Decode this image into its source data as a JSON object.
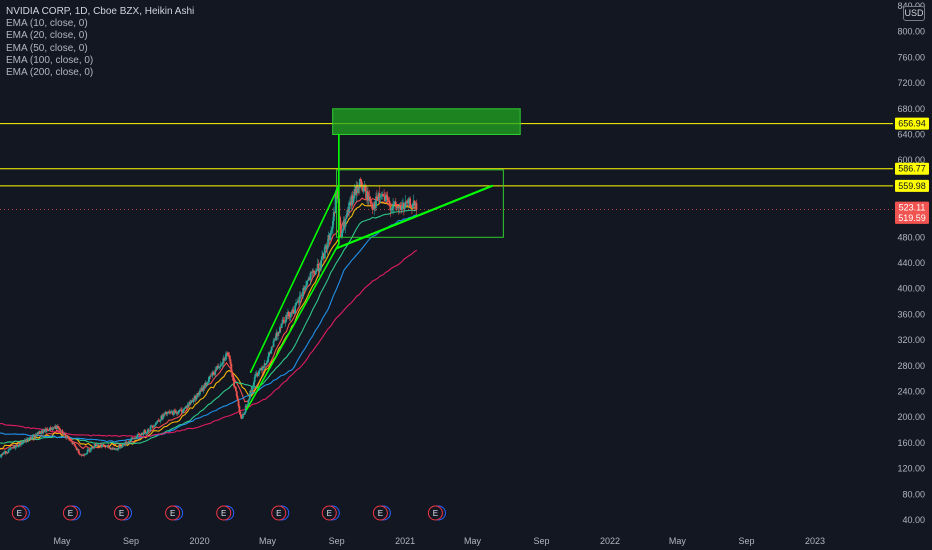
{
  "legend": {
    "title": "NVIDIA CORP, 1D, Cboe BZX, Heikin Ashi",
    "studies": [
      "EMA (10, close, 0)",
      "EMA (20, close, 0)",
      "EMA (50, close, 0)",
      "EMA (100, close, 0)",
      "EMA (200, close, 0)"
    ]
  },
  "currency_button": "USD",
  "earnings_marker": "E",
  "colors": {
    "background": "#131722",
    "axis_text": "#b2b5be",
    "level_line": "#ffff00",
    "trend_line": "#00ff00",
    "zone_fill": "#22a822",
    "current_price": "#f05350",
    "ema_10": "#ff5252",
    "ema_20": "#ffc107",
    "ema_50": "#2fd28e",
    "ema_100": "#2196f3",
    "ema_200": "#e91e63",
    "candle_up": "#26a69a",
    "candle_down": "#ef5350"
  },
  "chart_data": {
    "type": "candlestick",
    "symbol": "NVIDIA CORP",
    "interval": "1D",
    "exchange": "Cboe BZX",
    "style": "Heikin Ashi",
    "y_ticks": [
      "40.00",
      "80.00",
      "120.00",
      "160.00",
      "200.00",
      "240.00",
      "280.00",
      "320.00",
      "360.00",
      "400.00",
      "440.00",
      "480.00",
      "520.00",
      "560.00",
      "600.00",
      "640.00",
      "680.00",
      "720.00",
      "760.00",
      "800.00",
      "840.00"
    ],
    "x_ticks": [
      {
        "label": "May",
        "date": "2019-05-01"
      },
      {
        "label": "Sep",
        "date": "2019-09-01"
      },
      {
        "label": "2020",
        "date": "2020-01-01"
      },
      {
        "label": "May",
        "date": "2020-05-01"
      },
      {
        "label": "Sep",
        "date": "2020-09-01"
      },
      {
        "label": "2021",
        "date": "2021-01-01"
      },
      {
        "label": "May",
        "date": "2021-05-01"
      },
      {
        "label": "Sep",
        "date": "2021-09-01"
      },
      {
        "label": "2022",
        "date": "2022-01-01"
      },
      {
        "label": "May",
        "date": "2022-05-01"
      },
      {
        "label": "Sep",
        "date": "2022-09-01"
      },
      {
        "label": "2023",
        "date": "2023-01-01"
      }
    ],
    "ylim": [
      40,
      840
    ],
    "price_path": [
      [
        "2018-12-20",
        150
      ],
      [
        "2019-01-05",
        138
      ],
      [
        "2019-02-15",
        158
      ],
      [
        "2019-03-20",
        175
      ],
      [
        "2019-04-20",
        185
      ],
      [
        "2019-05-15",
        165
      ],
      [
        "2019-06-05",
        140
      ],
      [
        "2019-07-01",
        158
      ],
      [
        "2019-08-05",
        150
      ],
      [
        "2019-09-01",
        165
      ],
      [
        "2019-10-01",
        180
      ],
      [
        "2019-11-01",
        205
      ],
      [
        "2019-12-01",
        210
      ],
      [
        "2020-01-01",
        238
      ],
      [
        "2020-02-20",
        300
      ],
      [
        "2020-03-16",
        195
      ],
      [
        "2020-04-10",
        265
      ],
      [
        "2020-05-01",
        290
      ],
      [
        "2020-05-27",
        350
      ],
      [
        "2020-06-20",
        370
      ],
      [
        "2020-07-10",
        410
      ],
      [
        "2020-08-05",
        440
      ],
      [
        "2020-08-25",
        500
      ],
      [
        "2020-09-02",
        560
      ],
      [
        "2020-09-08",
        480
      ],
      [
        "2020-09-25",
        530
      ],
      [
        "2020-10-12",
        565
      ],
      [
        "2020-10-25",
        545
      ],
      [
        "2020-11-05",
        530
      ],
      [
        "2020-11-20",
        545
      ],
      [
        "2020-12-05",
        530
      ],
      [
        "2020-12-20",
        525
      ],
      [
        "2021-01-05",
        530
      ],
      [
        "2021-01-12",
        533
      ],
      [
        "2021-01-22",
        523.11
      ]
    ],
    "ema_series": [
      {
        "name": "EMA (10, close, 0)",
        "color": "#ff5252",
        "points": [
          [
            "2019-01-10",
            150
          ],
          [
            "2019-04-20",
            178
          ],
          [
            "2019-06-10",
            152
          ],
          [
            "2019-09-01",
            160
          ],
          [
            "2019-12-01",
            205
          ],
          [
            "2020-02-20",
            285
          ],
          [
            "2020-03-25",
            220
          ],
          [
            "2020-06-01",
            330
          ],
          [
            "2020-08-25",
            480
          ],
          [
            "2020-10-10",
            540
          ],
          [
            "2020-12-01",
            535
          ],
          [
            "2021-01-22",
            527
          ]
        ]
      },
      {
        "name": "EMA (20, close, 0)",
        "color": "#ffc107",
        "points": [
          [
            "2019-01-10",
            152
          ],
          [
            "2019-04-25",
            175
          ],
          [
            "2019-06-20",
            155
          ],
          [
            "2019-09-01",
            158
          ],
          [
            "2019-12-01",
            200
          ],
          [
            "2020-02-25",
            275
          ],
          [
            "2020-03-30",
            230
          ],
          [
            "2020-06-01",
            320
          ],
          [
            "2020-08-25",
            465
          ],
          [
            "2020-10-10",
            530
          ],
          [
            "2020-12-01",
            532
          ],
          [
            "2021-01-22",
            525
          ]
        ]
      },
      {
        "name": "EMA (50, close, 0)",
        "color": "#2fd28e",
        "points": [
          [
            "2019-01-10",
            160
          ],
          [
            "2019-05-01",
            170
          ],
          [
            "2019-07-01",
            160
          ],
          [
            "2019-09-20",
            160
          ],
          [
            "2019-12-15",
            195
          ],
          [
            "2020-03-05",
            255
          ],
          [
            "2020-04-15",
            245
          ],
          [
            "2020-06-15",
            305
          ],
          [
            "2020-08-25",
            430
          ],
          [
            "2020-10-15",
            505
          ],
          [
            "2020-12-15",
            520
          ],
          [
            "2021-01-22",
            522
          ]
        ]
      },
      {
        "name": "EMA (100, close, 0)",
        "color": "#2196f3",
        "points": [
          [
            "2019-01-10",
            175
          ],
          [
            "2019-05-15",
            168
          ],
          [
            "2019-08-01",
            162
          ],
          [
            "2019-11-01",
            175
          ],
          [
            "2020-01-15",
            205
          ],
          [
            "2020-04-01",
            235
          ],
          [
            "2020-06-15",
            275
          ],
          [
            "2020-08-15",
            365
          ],
          [
            "2020-09-15",
            430
          ],
          [
            "2020-11-01",
            480
          ],
          [
            "2020-12-20",
            505
          ],
          [
            "2021-01-22",
            515
          ]
        ]
      },
      {
        "name": "EMA (200, close, 0)",
        "color": "#e91e63",
        "points": [
          [
            "2019-01-10",
            190
          ],
          [
            "2019-06-01",
            172
          ],
          [
            "2019-10-01",
            170
          ],
          [
            "2020-01-01",
            185
          ],
          [
            "2020-03-01",
            205
          ],
          [
            "2020-05-01",
            230
          ],
          [
            "2020-07-01",
            280
          ],
          [
            "2020-09-01",
            355
          ],
          [
            "2020-11-01",
            410
          ],
          [
            "2020-12-15",
            435
          ],
          [
            "2021-01-22",
            460
          ]
        ]
      }
    ],
    "price_tags": [
      {
        "value": 656.94,
        "label": "656.94",
        "bg": "#ffff00",
        "fg": "#131722"
      },
      {
        "value": 586.77,
        "label": "586.77",
        "bg": "#ffff00",
        "fg": "#131722"
      },
      {
        "value": 559.98,
        "label": "559.98",
        "bg": "#ffff00",
        "fg": "#131722"
      },
      {
        "value": 523.11,
        "label": "523.11",
        "bg": "#f05350",
        "fg": "#ffffff"
      },
      {
        "value": 519.59,
        "label": "519.59",
        "bg": "#f05350",
        "fg": "#ffffff"
      }
    ],
    "horizontal_levels": [
      656.94,
      586.77,
      559.98
    ],
    "current_price_line": 523.11,
    "drawings": {
      "target_zone": {
        "from": "2020-08-25",
        "to": "2021-07-25",
        "low": 640,
        "high": 680
      },
      "range_box": {
        "from": "2020-09-01",
        "to": "2021-06-25",
        "low": 480,
        "high": 585
      },
      "support_trendline": [
        [
          "2020-09-01",
          463
        ],
        [
          "2021-06-05",
          560
        ]
      ],
      "up_channel_upper": [
        [
          "2020-04-01",
          270
        ],
        [
          "2020-09-05",
          560
        ]
      ],
      "up_channel_lower": [
        [
          "2020-03-25",
          212
        ],
        [
          "2020-09-05",
          470
        ]
      ],
      "projection_connector": [
        [
          "2020-09-05",
          470
        ],
        [
          "2020-09-05",
          640
        ]
      ]
    },
    "earnings_dates": [
      "2019-02-14",
      "2019-05-16",
      "2019-08-15",
      "2019-11-14",
      "2020-02-13",
      "2020-05-21",
      "2020-08-19",
      "2020-11-18",
      "2021-02-24"
    ],
    "xlabel": "",
    "ylabel": "",
    "grid": false
  }
}
